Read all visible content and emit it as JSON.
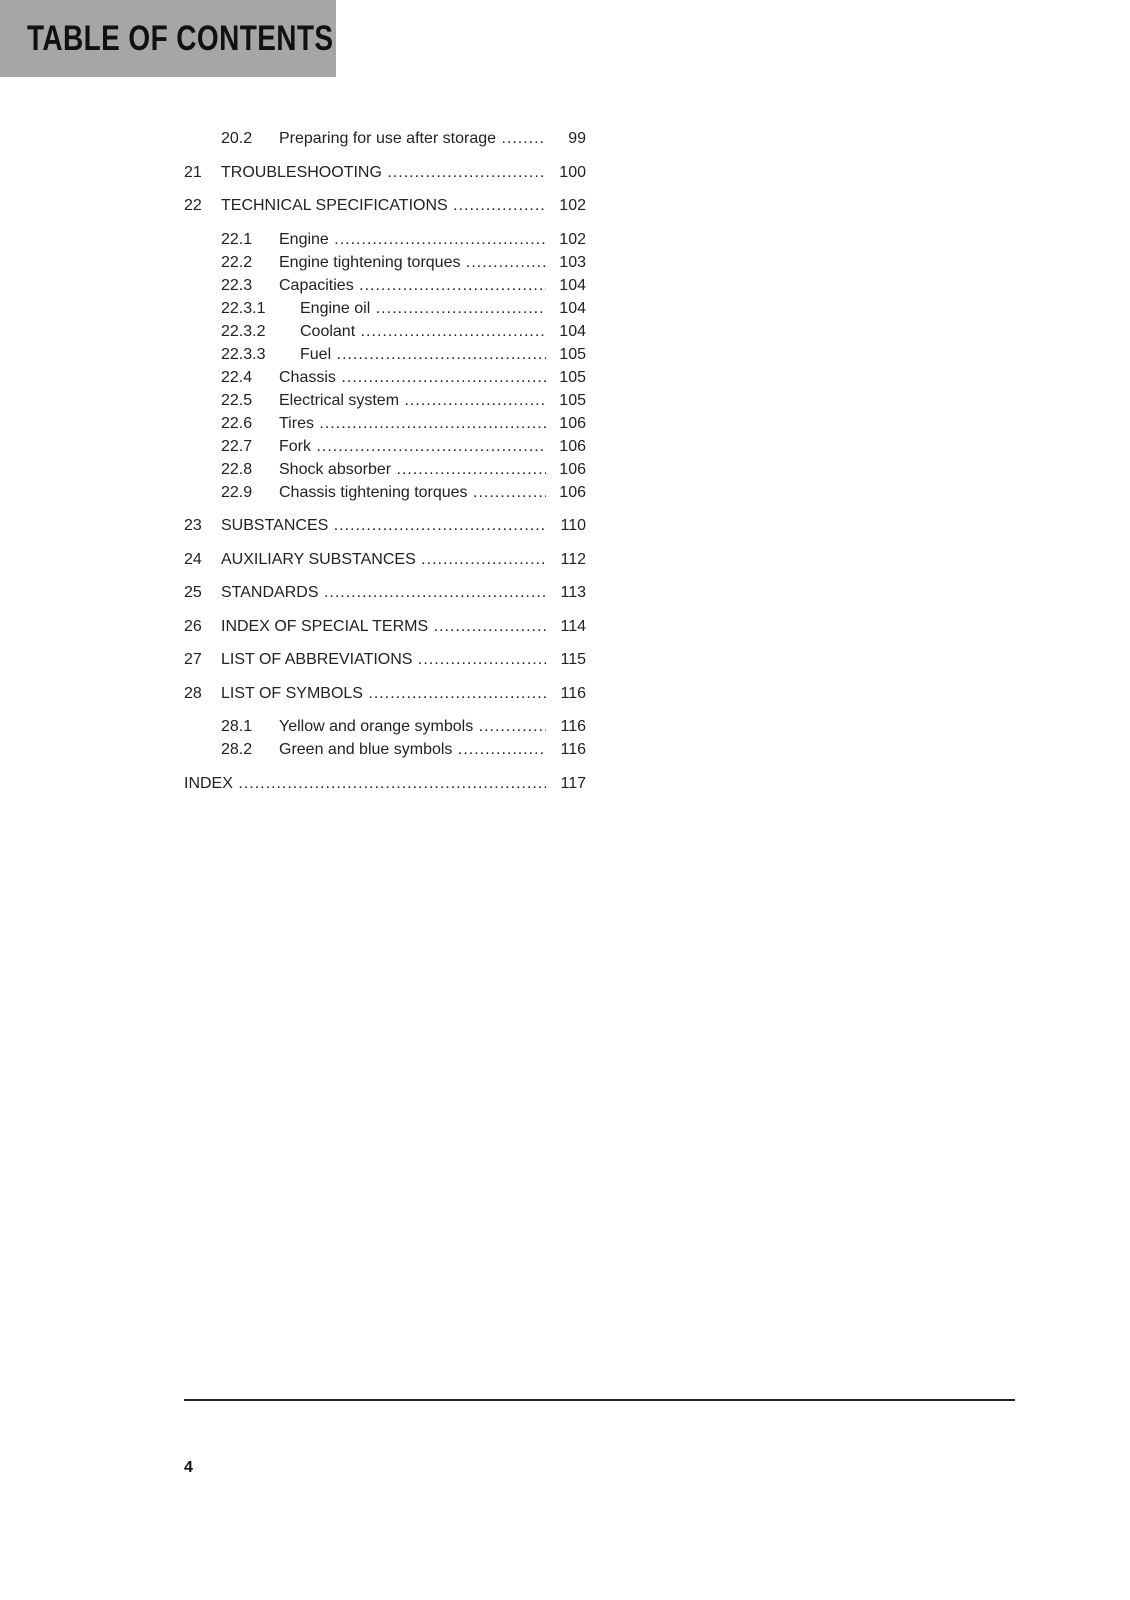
{
  "header": {
    "title": "TABLE OF CONTENTS",
    "background": "#a6a6a6"
  },
  "toc": [
    {
      "level": "sub",
      "num": "20.2",
      "title": "Preparing for use after storage",
      "page": "99"
    },
    {
      "level": "chapter",
      "num": "21",
      "title": "TROUBLESHOOTING",
      "page": "100"
    },
    {
      "level": "chapter",
      "num": "22",
      "title": "TECHNICAL SPECIFICATIONS",
      "page": "102"
    },
    {
      "level": "sub",
      "num": "22.1",
      "title": "Engine",
      "page": "102"
    },
    {
      "level": "sub",
      "num": "22.2",
      "title": "Engine tightening torques",
      "page": "103"
    },
    {
      "level": "sub",
      "num": "22.3",
      "title": "Capacities",
      "page": "104"
    },
    {
      "level": "subsub",
      "num": "22.3.1",
      "title": "Engine oil",
      "page": "104"
    },
    {
      "level": "subsub",
      "num": "22.3.2",
      "title": "Coolant",
      "page": "104"
    },
    {
      "level": "subsub",
      "num": "22.3.3",
      "title": "Fuel",
      "page": "105"
    },
    {
      "level": "sub",
      "num": "22.4",
      "title": "Chassis",
      "page": "105"
    },
    {
      "level": "sub",
      "num": "22.5",
      "title": "Electrical system",
      "page": "105"
    },
    {
      "level": "sub",
      "num": "22.6",
      "title": "Tires",
      "page": "106"
    },
    {
      "level": "sub",
      "num": "22.7",
      "title": "Fork",
      "page": "106"
    },
    {
      "level": "sub",
      "num": "22.8",
      "title": "Shock absorber",
      "page": "106"
    },
    {
      "level": "sub",
      "num": "22.9",
      "title": "Chassis tightening torques",
      "page": "106"
    },
    {
      "level": "chapter",
      "num": "23",
      "title": "SUBSTANCES",
      "page": "110"
    },
    {
      "level": "chapter",
      "num": "24",
      "title": "AUXILIARY SUBSTANCES",
      "page": "112"
    },
    {
      "level": "chapter",
      "num": "25",
      "title": "STANDARDS",
      "page": "113"
    },
    {
      "level": "chapter",
      "num": "26",
      "title": "INDEX OF SPECIAL TERMS",
      "page": "114"
    },
    {
      "level": "chapter",
      "num": "27",
      "title": "LIST OF ABBREVIATIONS",
      "page": "115"
    },
    {
      "level": "chapter",
      "num": "28",
      "title": "LIST OF SYMBOLS",
      "page": "116"
    },
    {
      "level": "sub",
      "num": "28.1",
      "title": "Yellow and orange symbols",
      "page": "116"
    },
    {
      "level": "sub",
      "num": "28.2",
      "title": "Green and blue symbols",
      "page": "116"
    },
    {
      "level": "index",
      "num": "",
      "title": "INDEX",
      "page": "117"
    }
  ],
  "footer": {
    "page_number": "4"
  }
}
